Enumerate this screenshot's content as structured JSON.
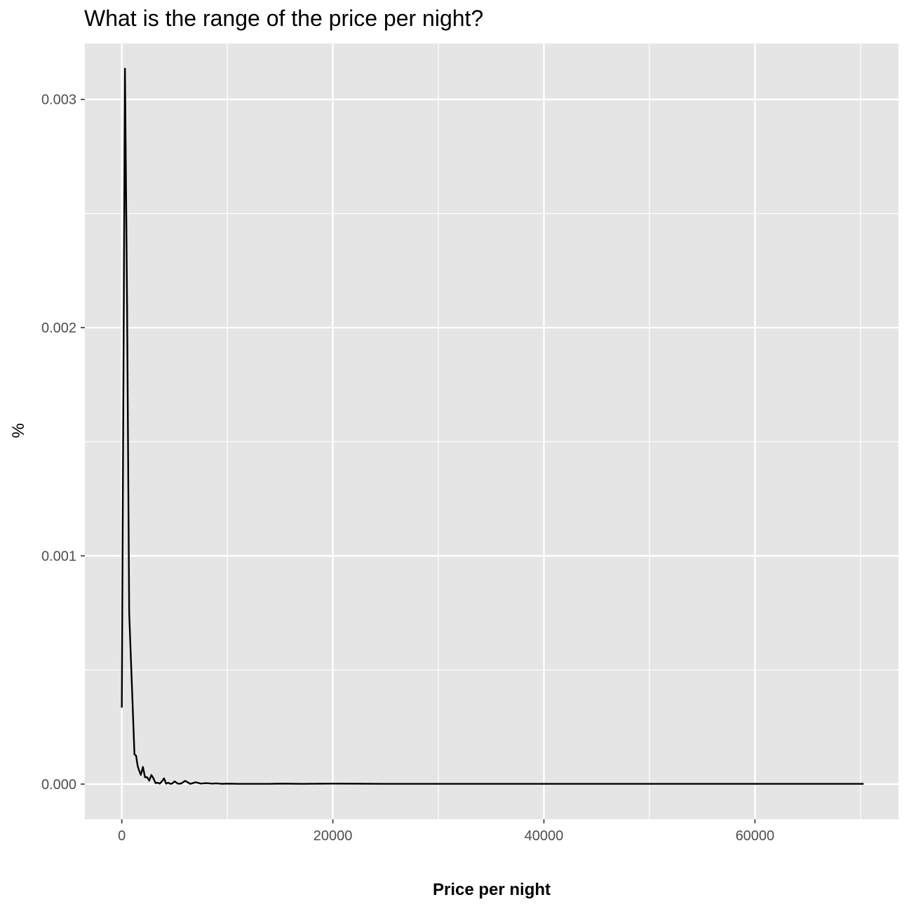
{
  "chart_data": {
    "type": "line",
    "title": "What is the range of the price per night?",
    "xlabel": "Price per night",
    "ylabel": "%",
    "xlim": [
      -3500,
      73600
    ],
    "ylim": [
      -0.000154,
      0.003245
    ],
    "x_ticks": [
      0,
      20000,
      40000,
      60000
    ],
    "x_tick_labels": [
      "0",
      "20000",
      "40000",
      "60000"
    ],
    "y_ticks": [
      0.0,
      0.001,
      0.002,
      0.003
    ],
    "y_tick_labels": [
      "0.000",
      "0.001",
      "0.002",
      "0.003"
    ],
    "grid": true,
    "colors": {
      "panel": "#e5e5e5",
      "grid": "#ffffff",
      "line": "#000000",
      "tick_text": "#4d4d4d"
    },
    "series": [
      {
        "x": [
          0,
          300,
          500,
          700,
          1000,
          1200,
          1350,
          1500,
          1600,
          1800,
          2000,
          2200,
          2400,
          2600,
          2800,
          3000,
          3200,
          3400,
          3600,
          3800,
          4000,
          4200,
          4400,
          4600,
          4800,
          5000,
          5300,
          5600,
          6000,
          6500,
          7000,
          7500,
          8000,
          8500,
          9000,
          9500,
          10000,
          11000,
          12000,
          13000,
          14000,
          15000,
          17000,
          20000,
          25000,
          30000,
          35000,
          40000,
          50000,
          60000,
          70300
        ],
        "y": [
          0.000335,
          0.003135,
          0.0021,
          0.00075,
          0.00038,
          0.00013,
          0.000125,
          8e-05,
          6.5e-05,
          4e-05,
          7.5e-05,
          3e-05,
          3e-05,
          1.5e-05,
          4e-05,
          2.5e-05,
          4e-06,
          6e-06,
          2e-06,
          1.2e-05,
          2.5e-05,
          2e-06,
          6e-06,
          1e-06,
          3e-06,
          1.2e-05,
          2e-06,
          2e-06,
          1.4e-05,
          1e-06,
          8e-06,
          2e-06,
          4e-06,
          2e-06,
          3e-06,
          1e-06,
          2e-06,
          1e-06,
          1e-06,
          1e-06,
          1e-06,
          2e-06,
          1e-06,
          2e-06,
          1e-06,
          1e-06,
          1e-06,
          1e-06,
          1e-06,
          1e-06,
          1e-06
        ]
      }
    ]
  }
}
